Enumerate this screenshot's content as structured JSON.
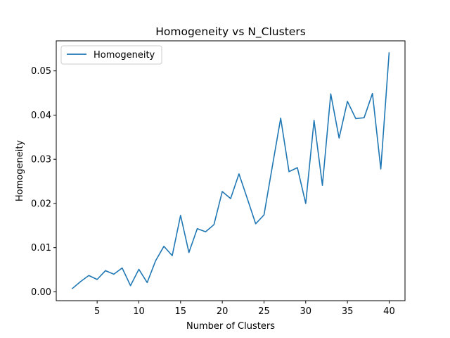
{
  "chart_data": {
    "type": "line",
    "title": "Homogeneity vs N_Clusters",
    "xlabel": "Number of Clusters",
    "ylabel": "Homogeneity",
    "xlim": [
      0.1,
      41.9
    ],
    "ylim": [
      -0.002,
      0.0568
    ],
    "xticks": [
      5,
      10,
      15,
      20,
      25,
      30,
      35,
      40
    ],
    "yticks": [
      0.0,
      0.01,
      0.02,
      0.03,
      0.04,
      0.05
    ],
    "ytick_labels": [
      "0.00",
      "0.01",
      "0.02",
      "0.03",
      "0.04",
      "0.05"
    ],
    "grid": false,
    "legend_position": "upper-left",
    "series": [
      {
        "name": "Homogeneity",
        "color": "#1f77b4",
        "x": [
          2,
          3,
          4,
          5,
          6,
          7,
          8,
          9,
          10,
          11,
          12,
          13,
          14,
          15,
          16,
          17,
          18,
          19,
          20,
          21,
          22,
          23,
          24,
          25,
          26,
          27,
          28,
          29,
          30,
          31,
          32,
          33,
          34,
          35,
          36,
          37,
          38,
          39,
          40
        ],
        "y": [
          0.0007,
          0.0023,
          0.0037,
          0.0028,
          0.0048,
          0.004,
          0.0054,
          0.0014,
          0.0051,
          0.0021,
          0.007,
          0.0103,
          0.0082,
          0.0173,
          0.0089,
          0.0143,
          0.0136,
          0.0152,
          0.0227,
          0.0211,
          0.0267,
          0.0211,
          0.0154,
          0.0174,
          0.0284,
          0.0393,
          0.0272,
          0.0281,
          0.02,
          0.0388,
          0.0241,
          0.0448,
          0.0348,
          0.0431,
          0.0392,
          0.0394,
          0.0449,
          0.0278,
          0.0542
        ]
      }
    ]
  }
}
